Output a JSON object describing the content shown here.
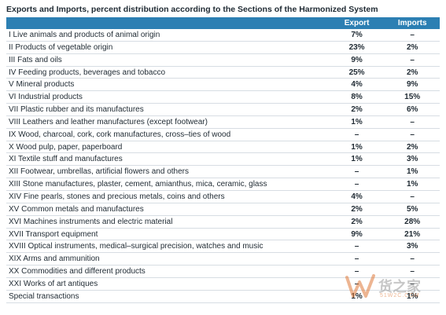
{
  "title": "Exports and Imports, percent distribution according to the Sections of the Harmonized System",
  "columns": {
    "name": "",
    "export": "Export",
    "imports": "Imports"
  },
  "rows": [
    {
      "name": "I Live animals and products of animal origin",
      "export": "7%",
      "imports": "–"
    },
    {
      "name": "II Products of vegetable origin",
      "export": "23%",
      "imports": "2%"
    },
    {
      "name": "III Fats and oils",
      "export": "9%",
      "imports": "–"
    },
    {
      "name": "IV Feeding products, beverages and tobacco",
      "export": "25%",
      "imports": "2%"
    },
    {
      "name": "V Mineral products",
      "export": "4%",
      "imports": "9%"
    },
    {
      "name": "VI Industrial products",
      "export": "8%",
      "imports": "15%"
    },
    {
      "name": "VII Plastic rubber and its manufactures",
      "export": "2%",
      "imports": "6%"
    },
    {
      "name": "VIII Leathers and leather manufactures (except footwear)",
      "export": "1%",
      "imports": "–"
    },
    {
      "name": "IX Wood, charcoal, cork, cork manufactures, cross–ties of wood",
      "export": "–",
      "imports": "–"
    },
    {
      "name": "X Wood pulp, paper, paperboard",
      "export": "1%",
      "imports": "2%"
    },
    {
      "name": "XI Textile stuff and manufactures",
      "export": "1%",
      "imports": "3%"
    },
    {
      "name": "XII Footwear, umbrellas, artificial flowers and others",
      "export": "–",
      "imports": "1%"
    },
    {
      "name": "XIII Stone manufactures, plaster, cement, amianthus, mica, ceramic, glass",
      "export": "–",
      "imports": "1%"
    },
    {
      "name": "XIV Fine pearls, stones and precious metals, coins and others",
      "export": "4%",
      "imports": "–"
    },
    {
      "name": "XV Common metals and manufactures",
      "export": "2%",
      "imports": "5%"
    },
    {
      "name": "XVI Machines instruments and electric material",
      "export": "2%",
      "imports": "28%"
    },
    {
      "name": "XVII Transport equipment",
      "export": "9%",
      "imports": "21%"
    },
    {
      "name": "XVIII Optical instruments, medical–surgical precision, watches and music",
      "export": "–",
      "imports": "3%"
    },
    {
      "name": "XIX Arms and ammunition",
      "export": "–",
      "imports": "–"
    },
    {
      "name": "XX Commodities and different products",
      "export": "–",
      "imports": "–"
    },
    {
      "name": "XXI Works of art antiques",
      "export": "–",
      "imports": "–"
    },
    {
      "name": "Special transactions",
      "export": "1%",
      "imports": "1%"
    }
  ],
  "watermark": {
    "text": "货之家",
    "sub": "51W2C.COM",
    "logo_color": "#e07a3a"
  }
}
